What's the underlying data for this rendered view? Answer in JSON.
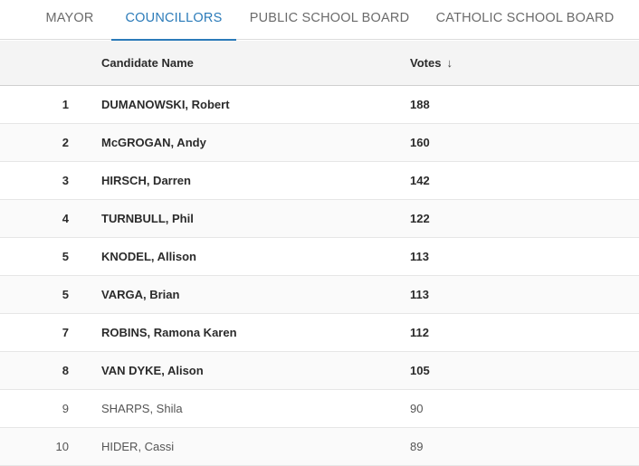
{
  "tabs": [
    {
      "label": "MAYOR",
      "active": false
    },
    {
      "label": "COUNCILLORS",
      "active": true
    },
    {
      "label": "PUBLIC SCHOOL BOARD",
      "active": false
    },
    {
      "label": "CATHOLIC SCHOOL BOARD",
      "active": false
    }
  ],
  "table": {
    "columns": {
      "name": "Candidate Name",
      "votes": "Votes",
      "sort_icon": "arrow-down-icon",
      "sort_glyph": "↓"
    },
    "rows": [
      {
        "rank": "1",
        "name": "DUMANOWSKI, Robert",
        "votes": "188",
        "elected": true
      },
      {
        "rank": "2",
        "name": "McGROGAN, Andy",
        "votes": "160",
        "elected": true
      },
      {
        "rank": "3",
        "name": "HIRSCH, Darren",
        "votes": "142",
        "elected": true
      },
      {
        "rank": "4",
        "name": "TURNBULL, Phil",
        "votes": "122",
        "elected": true
      },
      {
        "rank": "5",
        "name": "KNODEL, Allison",
        "votes": "113",
        "elected": true
      },
      {
        "rank": "5",
        "name": "VARGA, Brian",
        "votes": "113",
        "elected": true
      },
      {
        "rank": "7",
        "name": "ROBINS, Ramona Karen",
        "votes": "112",
        "elected": true
      },
      {
        "rank": "8",
        "name": "VAN DYKE, Alison",
        "votes": "105",
        "elected": true
      },
      {
        "rank": "9",
        "name": "SHARPS, Shila",
        "votes": "90",
        "elected": false
      },
      {
        "rank": "10",
        "name": "HIDER, Cassi",
        "votes": "89",
        "elected": false
      }
    ]
  },
  "colors": {
    "accent": "#2b7bb9",
    "header_bg": "#f4f4f4"
  }
}
